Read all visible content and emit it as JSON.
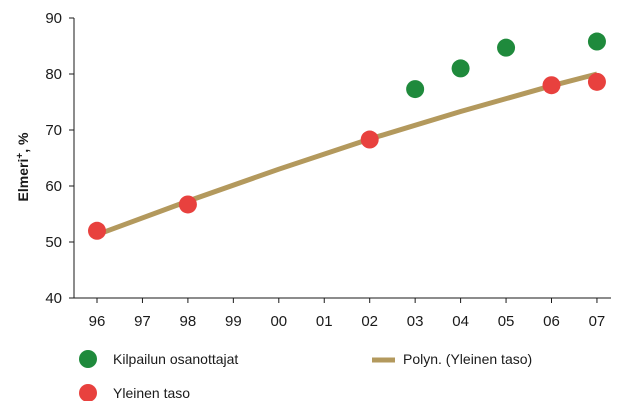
{
  "chart_data": {
    "type": "scatter",
    "title": "",
    "xlabel": "",
    "ylabel": "Elmeri",
    "ylabel_superscript": "+",
    "ylabel_unit": ", %",
    "x": [
      "96",
      "97",
      "98",
      "99",
      "00",
      "01",
      "02",
      "03",
      "04",
      "05",
      "06",
      "07"
    ],
    "ylim": [
      40,
      90
    ],
    "yticks": [
      40,
      50,
      60,
      70,
      80,
      90
    ],
    "grid": false,
    "legend_position": "bottom",
    "series": [
      {
        "name": "Kilpailun osanottajat",
        "kind": "points",
        "color": "#1f8a3c",
        "points": [
          {
            "x": "03",
            "y": 77.3
          },
          {
            "x": "04",
            "y": 81.0
          },
          {
            "x": "05",
            "y": 84.7
          },
          {
            "x": "07",
            "y": 85.8
          }
        ]
      },
      {
        "name": "Yleinen taso",
        "kind": "points",
        "color": "#e8413e",
        "points": [
          {
            "x": "96",
            "y": 52.0
          },
          {
            "x": "98",
            "y": 56.7
          },
          {
            "x": "02",
            "y": 68.3
          },
          {
            "x": "06",
            "y": 78.0
          },
          {
            "x": "07",
            "y": 78.6
          }
        ]
      },
      {
        "name": "Polyn. (Yleinen taso)",
        "kind": "trendline",
        "color": "#b3995d",
        "points": [
          {
            "x": "96",
            "y": 51.3
          },
          {
            "x": "98",
            "y": 57.3
          },
          {
            "x": "00",
            "y": 63.0
          },
          {
            "x": "02",
            "y": 68.4
          },
          {
            "x": "04",
            "y": 73.3
          },
          {
            "x": "06",
            "y": 77.9
          },
          {
            "x": "07",
            "y": 80.0
          }
        ]
      }
    ]
  }
}
